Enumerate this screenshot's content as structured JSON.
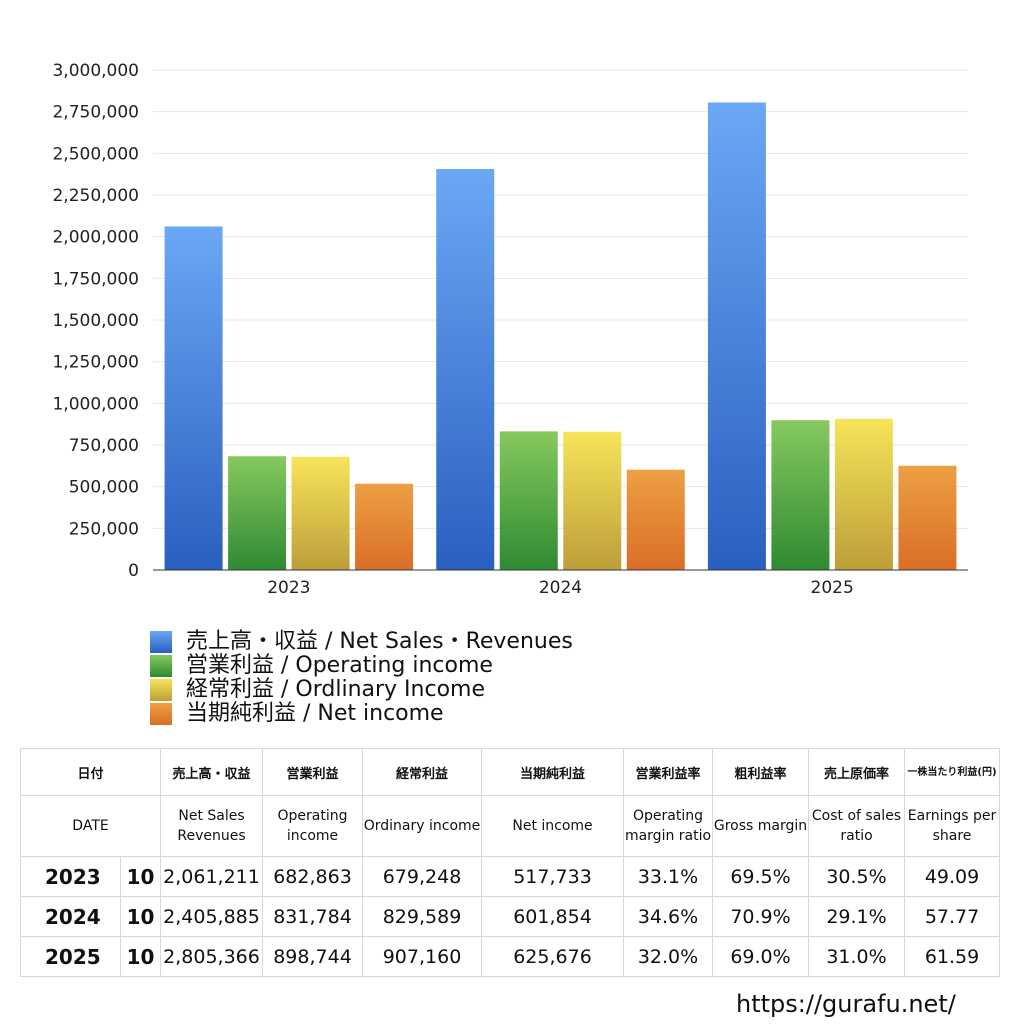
{
  "chart_data": {
    "type": "bar",
    "categories": [
      "2023",
      "2024",
      "2025"
    ],
    "ylim": [
      0,
      3000000
    ],
    "yticks": [
      0,
      250000,
      500000,
      750000,
      1000000,
      1250000,
      1500000,
      1750000,
      2000000,
      2250000,
      2500000,
      2750000,
      3000000
    ],
    "ytick_labels": [
      "0",
      "250,000",
      "500,000",
      "750,000",
      "1,000,000",
      "1,250,000",
      "1,500,000",
      "1,750,000",
      "2,000,000",
      "2,250,000",
      "2,500,000",
      "2,750,000",
      "3,000,000"
    ],
    "series": [
      {
        "name": "売上高・収益 / Net Sales・Revenues",
        "values": [
          2061211,
          2405885,
          2805366
        ],
        "color_top": "#6aa8f5",
        "color_bottom": "#2a5fc0"
      },
      {
        "name": "営業利益 / Operating income",
        "values": [
          682863,
          831784,
          898744
        ],
        "color_top": "#86c95e",
        "color_bottom": "#2f8a32"
      },
      {
        "name": "経常利益 / Ordlinary Income",
        "values": [
          679248,
          829589,
          907160
        ],
        "color_top": "#f7e459",
        "color_bottom": "#bd9e3a"
      },
      {
        "name": "当期純利益 / Net income",
        "values": [
          517733,
          601854,
          625676
        ],
        "color_top": "#eca043",
        "color_bottom": "#da6e27"
      }
    ],
    "legend_position": "bottom-left",
    "grid": true
  },
  "table": {
    "headers_jp": [
      "日付",
      "売上高・収益",
      "営業利益",
      "経常利益",
      "当期純利益",
      "営業利益率",
      "粗利益率",
      "売上原価率",
      "一株当たり利益(円)"
    ],
    "headers_en": [
      "DATE",
      "Net Sales Revenues",
      "Operating income",
      "Ordinary income",
      "Net income",
      "Operating margin ratio",
      "Gross margin",
      "Cost of sales ratio",
      "Earnings per share"
    ],
    "rows": [
      {
        "year": "2023",
        "month": "10",
        "sales": "2,061,211",
        "operating": "682,863",
        "ordinary": "679,248",
        "net": "517,733",
        "op_margin": "33.1%",
        "gross": "69.5%",
        "cost": "30.5%",
        "eps": "49.09"
      },
      {
        "year": "2024",
        "month": "10",
        "sales": "2,405,885",
        "operating": "831,784",
        "ordinary": "829,589",
        "net": "601,854",
        "op_margin": "34.6%",
        "gross": "70.9%",
        "cost": "29.1%",
        "eps": "57.77"
      },
      {
        "year": "2025",
        "month": "10",
        "sales": "2,805,366",
        "operating": "898,744",
        "ordinary": "907,160",
        "net": "625,676",
        "op_margin": "32.0%",
        "gross": "69.0%",
        "cost": "31.0%",
        "eps": "61.59"
      }
    ]
  },
  "footer": {
    "url": "https://gurafu.net/"
  }
}
